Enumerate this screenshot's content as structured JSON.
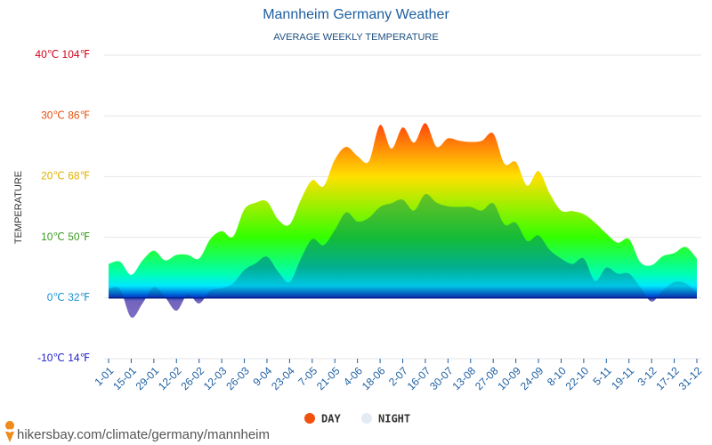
{
  "chart_data": {
    "type": "area",
    "title": "Mannheim Germany Weather",
    "subtitle": "AVERAGE WEEKLY TEMPERATURE",
    "y_label": "TEMPERATURE",
    "source": "hikersbay.com/climate/germany/mannheim",
    "categories": [
      "1-01",
      null,
      "15-01",
      null,
      "29-01",
      null,
      "12-02",
      null,
      "26-02",
      null,
      "12-03",
      null,
      "26-03",
      null,
      "9-04",
      null,
      "23-04",
      null,
      "7-05",
      null,
      "21-05",
      null,
      "4-06",
      null,
      "18-06",
      null,
      "2-07",
      null,
      "16-07",
      null,
      "30-07",
      null,
      "13-08",
      null,
      "27-08",
      null,
      "10-09",
      null,
      "24-09",
      null,
      "8-10",
      null,
      "22-10",
      null,
      "5-11",
      null,
      "19-11",
      null,
      "3-12",
      null,
      "17-12",
      null,
      "31-12"
    ],
    "series": [
      {
        "name": "DAY",
        "color": "#f0520e",
        "values": [
          5.6,
          6.0,
          3.8,
          6.2,
          7.8,
          6.2,
          7.1,
          7.1,
          6.5,
          9.7,
          11.0,
          10.1,
          14.6,
          15.7,
          15.9,
          12.9,
          12.1,
          16.2,
          19.4,
          18.4,
          22.8,
          24.9,
          23.4,
          22.5,
          28.5,
          24.6,
          28.1,
          25.6,
          28.8,
          24.9,
          26.3,
          25.9,
          25.7,
          25.9,
          27.1,
          22.1,
          22.4,
          18.5,
          20.9,
          17.2,
          14.4,
          14.3,
          13.8,
          12.4,
          10.6,
          9.1,
          9.7,
          5.9,
          5.4,
          6.9,
          7.4,
          8.4,
          6.5
        ]
      },
      {
        "name": "NIGHT",
        "color": "#e3eaf4",
        "values": [
          1.5,
          1.5,
          -3.2,
          -0.9,
          1.8,
          0.1,
          -2.1,
          0.6,
          -0.9,
          1.2,
          1.6,
          2.4,
          4.6,
          5.7,
          6.8,
          4.3,
          2.6,
          6.5,
          9.7,
          8.7,
          11.2,
          14.1,
          12.6,
          13.2,
          15.0,
          15.6,
          16.2,
          14.4,
          17.1,
          15.7,
          15.1,
          15.0,
          15.0,
          14.4,
          15.6,
          12.1,
          12.4,
          9.4,
          10.3,
          7.9,
          6.5,
          5.6,
          6.5,
          2.8,
          5.0,
          4.0,
          4.0,
          1.8,
          -0.6,
          1.3,
          2.6,
          2.4,
          0.9
        ]
      }
    ],
    "ylim": [
      -10,
      40
    ],
    "yticks": [
      {
        "value": -10,
        "label": "-10℃ 14℉"
      },
      {
        "value": 0,
        "label": "0℃ 32℉"
      },
      {
        "value": 10,
        "label": "10℃ 50℉"
      },
      {
        "value": 20,
        "label": "20℃ 68℉"
      },
      {
        "value": 30,
        "label": "30℃ 86℉"
      },
      {
        "value": 40,
        "label": "40℃ 104℉"
      }
    ],
    "grid": true
  }
}
